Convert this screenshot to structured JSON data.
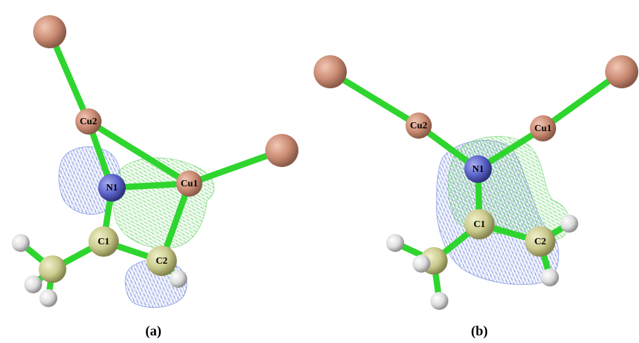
{
  "colors": {
    "bond": "#2ed52e",
    "bond_dark": "#1a9a1a",
    "copper": "#c98a72",
    "nitrogen": "#5a62c8",
    "carbon": "#c9c98c",
    "hydrogen": "#e6e6e6",
    "mesh_blue": "#5a74d8",
    "mesh_green": "#5fcf5f"
  },
  "panels": [
    {
      "caption": "(a)",
      "labels": {
        "cu2": "Cu2",
        "cu1": "Cu1",
        "n1": "N1",
        "c1": "C1",
        "c2": "C2"
      }
    },
    {
      "caption": "(b)",
      "labels": {
        "cu2": "Cu2",
        "cu1": "Cu1",
        "n1": "N1",
        "c1": "C1",
        "c2": "C2"
      }
    }
  ]
}
